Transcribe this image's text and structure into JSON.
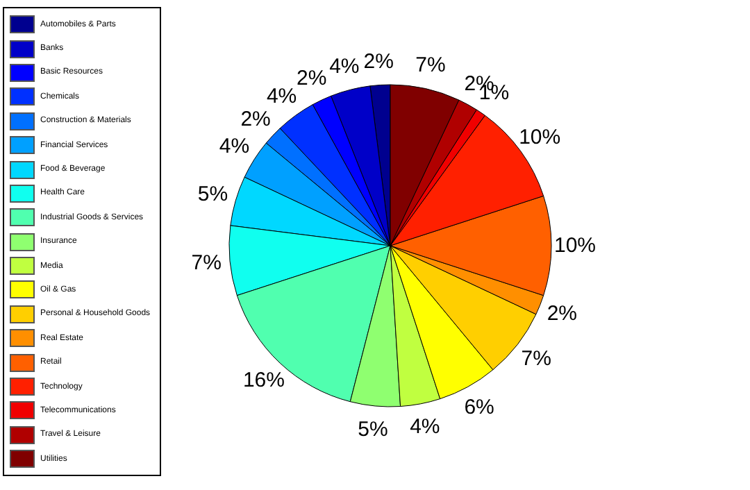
{
  "chart_data": {
    "type": "pie",
    "categories": [
      "Automobiles & Parts",
      "Banks",
      "Basic Resources",
      "Chemicals",
      "Construction & Materials",
      "Financial Services",
      "Food & Beverage",
      "Health Care",
      "Industrial Goods & Services",
      "Insurance",
      "Media",
      "Oil & Gas",
      "Personal & Household Goods",
      "Real Estate",
      "Retail",
      "Technology",
      "Telecommunications",
      "Travel & Leisure",
      "Utilities"
    ],
    "values": [
      2,
      4,
      2,
      4,
      2,
      4,
      5,
      7,
      16,
      5,
      4,
      6,
      7,
      2,
      10,
      10,
      1,
      2,
      7
    ],
    "value_labels": [
      "2%",
      "4%",
      "2%",
      "4%",
      "2%",
      "4%",
      "5%",
      "7%",
      "16%",
      "5%",
      "4%",
      "6%",
      "7%",
      "2%",
      "10%",
      "10%",
      "1%",
      "2%",
      "7%"
    ],
    "colors": [
      "#00008f",
      "#0000c8",
      "#0000ff",
      "#0030ff",
      "#0070ff",
      "#00a0ff",
      "#00d8ff",
      "#10ffef",
      "#50ffaf",
      "#8fff70",
      "#c0ff40",
      "#ffff00",
      "#ffcf00",
      "#ff8f00",
      "#ff6000",
      "#ff2000",
      "#f00000",
      "#b00000",
      "#800000"
    ],
    "legend": "left"
  }
}
